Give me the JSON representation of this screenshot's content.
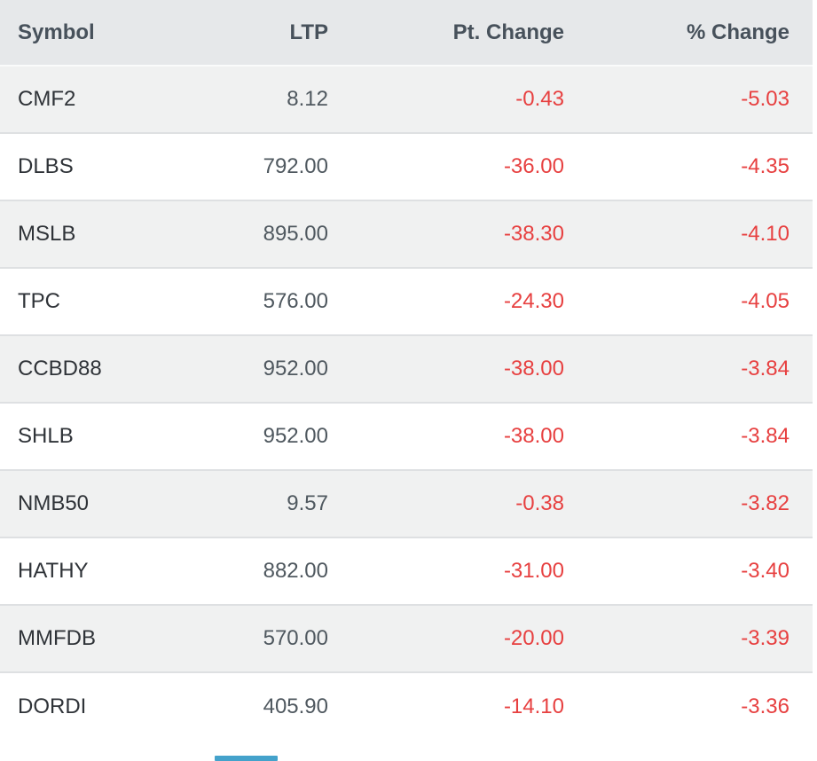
{
  "table": {
    "columns": [
      {
        "label": "Symbol",
        "align": "left"
      },
      {
        "label": "LTP",
        "align": "right"
      },
      {
        "label": "Pt. Change",
        "align": "right"
      },
      {
        "label": "% Change",
        "align": "right"
      }
    ],
    "rows": [
      {
        "symbol": "CMF2",
        "ltp": "8.12",
        "pt_change": "-0.43",
        "pct_change": "-5.03"
      },
      {
        "symbol": "DLBS",
        "ltp": "792.00",
        "pt_change": "-36.00",
        "pct_change": "-4.35"
      },
      {
        "symbol": "MSLB",
        "ltp": "895.00",
        "pt_change": "-38.30",
        "pct_change": "-4.10"
      },
      {
        "symbol": "TPC",
        "ltp": "576.00",
        "pt_change": "-24.30",
        "pct_change": "-4.05"
      },
      {
        "symbol": "CCBD88",
        "ltp": "952.00",
        "pt_change": "-38.00",
        "pct_change": "-3.84"
      },
      {
        "symbol": "SHLB",
        "ltp": "952.00",
        "pt_change": "-38.00",
        "pct_change": "-3.84"
      },
      {
        "symbol": "NMB50",
        "ltp": "9.57",
        "pt_change": "-0.38",
        "pct_change": "-3.82"
      },
      {
        "symbol": "HATHY",
        "ltp": "882.00",
        "pt_change": "-31.00",
        "pct_change": "-3.40"
      },
      {
        "symbol": "MMFDB",
        "ltp": "570.00",
        "pt_change": "-20.00",
        "pct_change": "-3.39"
      },
      {
        "symbol": "DORDI",
        "ltp": "405.90",
        "pt_change": "-14.10",
        "pct_change": "-3.36"
      }
    ]
  },
  "colors": {
    "header_bg": "#e6e8ea",
    "header_text": "#47515b",
    "row_alt_bg": "#f0f1f1",
    "row_bg": "#ffffff",
    "row_border": "#dee0e2",
    "symbol_text": "#2f3338",
    "value_text": "#4f585f",
    "negative_text": "#e74040",
    "accent_blue": "#44a2cb"
  }
}
